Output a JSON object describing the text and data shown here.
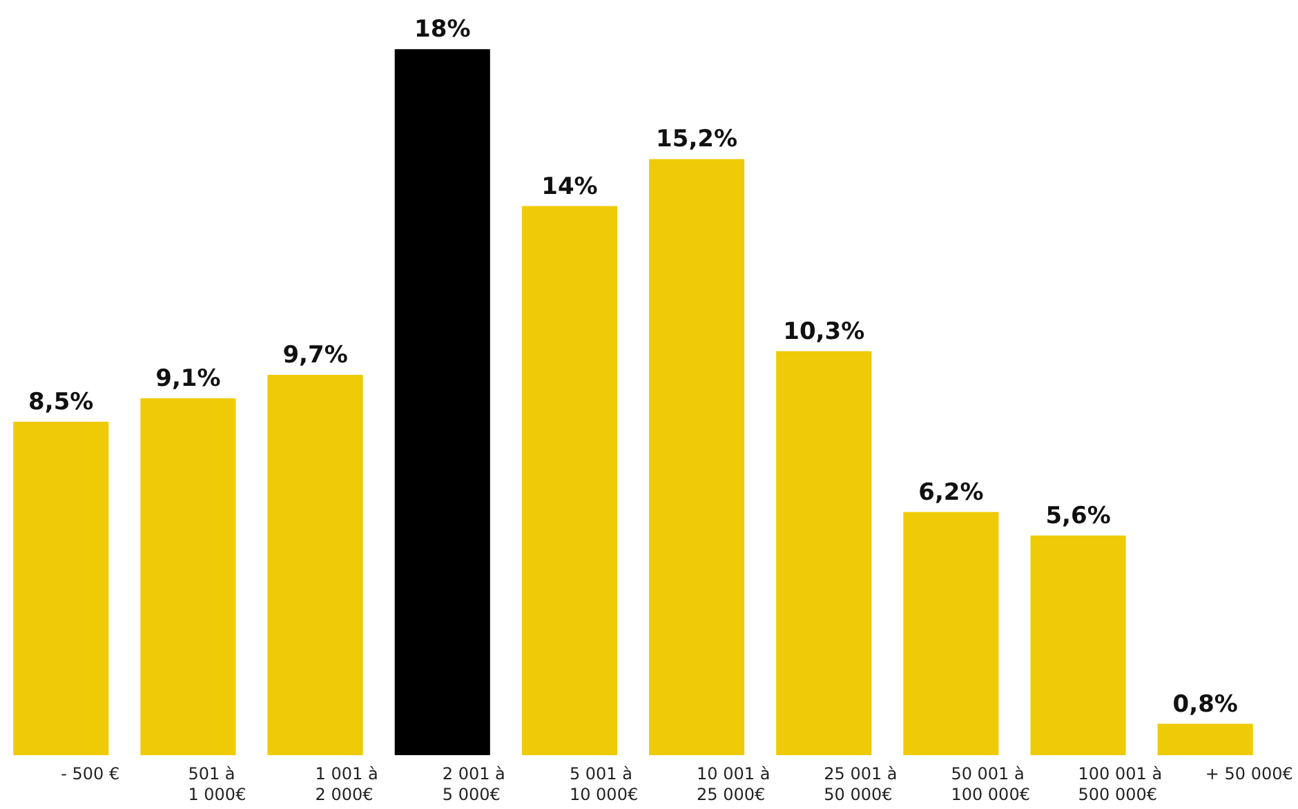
{
  "chart_data": {
    "type": "bar",
    "categories": [
      "- 500 €",
      "501 à\n1 000€",
      "1 001 à\n2 000€",
      "2 001 à\n5 000€",
      "5 001 à\n10 000€",
      "10 001 à\n25 000€",
      "25 001 à\n50 000€",
      "50 001 à\n100 000€",
      "100 001 à\n500 000€",
      "+ 50 000€"
    ],
    "values": [
      8.5,
      9.1,
      9.7,
      18,
      14,
      15.2,
      10.3,
      6.2,
      5.6,
      0.8
    ],
    "value_labels": [
      "8,5%",
      "9,1%",
      "9,7%",
      "18%",
      "14%",
      "15,2%",
      "10,3%",
      "6,2%",
      "5,6%",
      "0,8%"
    ],
    "colors": [
      "#efcb07",
      "#efcb07",
      "#efcb07",
      "#000000",
      "#efcb07",
      "#efcb07",
      "#efcb07",
      "#efcb07",
      "#efcb07",
      "#efcb07"
    ],
    "grid": false
  }
}
